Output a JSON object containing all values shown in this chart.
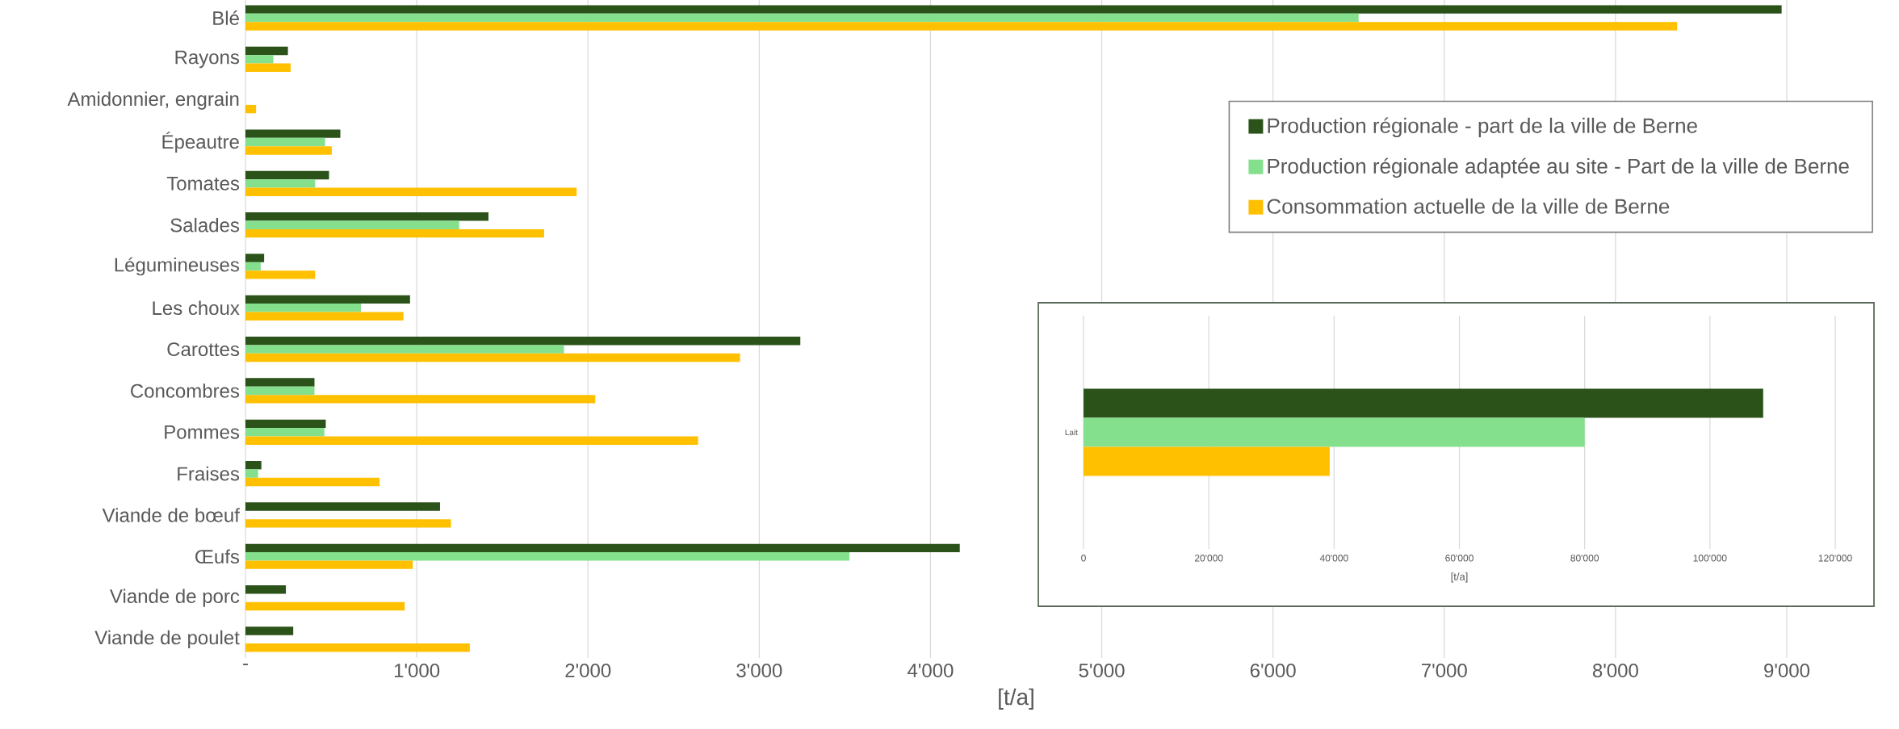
{
  "chart_data": [
    {
      "type": "bar",
      "orientation": "horizontal",
      "categories": [
        "Blé",
        "Rayons",
        "Amidonnier, engrain",
        "Épeautre",
        "Tomates",
        "Salades",
        "Légumineuses",
        "Les choux",
        "Carottes",
        "Concombres",
        "Pommes",
        "Fraises",
        "Viande de bœuf",
        "Œufs",
        "Viande de porc",
        "Viande de poulet"
      ],
      "series": [
        {
          "name": "Production régionale - part de la ville de Berne",
          "color": "#2a5219",
          "values": [
            8970,
            248,
            0,
            554,
            488,
            1419,
            109,
            961,
            3240,
            403,
            469,
            93,
            1136,
            4171,
            236,
            279
          ]
        },
        {
          "name": "Production régionale adaptée au site - Part de la ville de Berne",
          "color": "#85e08e",
          "values": [
            6500,
            163,
            0,
            465,
            407,
            1248,
            89,
            674,
            1860,
            403,
            461,
            74,
            null,
            3527,
            null,
            null
          ]
        },
        {
          "name": "Consommation actuelle de la ville de Berne",
          "color": "#ffc000",
          "values": [
            8360,
            264,
            62,
            504,
            1934,
            1744,
            407,
            922,
            2888,
            2043,
            2643,
            783,
            1200,
            977,
            930,
            1310
          ]
        }
      ],
      "xlim": [
        0,
        9000
      ],
      "xticks": [
        {
          "value": 0,
          "label": "-"
        },
        {
          "value": 1000,
          "label": "1'000"
        },
        {
          "value": 2000,
          "label": "2'000"
        },
        {
          "value": 3000,
          "label": "3'000"
        },
        {
          "value": 4000,
          "label": "4'000"
        },
        {
          "value": 5000,
          "label": "5'000"
        },
        {
          "value": 6000,
          "label": "6'000"
        },
        {
          "value": 7000,
          "label": "7'000"
        },
        {
          "value": 8000,
          "label": "8'000"
        },
        {
          "value": 9000,
          "label": "9'000"
        }
      ],
      "xlabel": "[t/a]",
      "grid": "x",
      "legend": "right"
    },
    {
      "type": "bar",
      "orientation": "horizontal",
      "categories": [
        "Lait"
      ],
      "series": [
        {
          "color": "#2a5219",
          "values": [
            108500
          ]
        },
        {
          "color": "#85e08e",
          "values": [
            80000
          ]
        },
        {
          "color": "#ffc000",
          "values": [
            39300
          ]
        }
      ],
      "xlim": [
        0,
        120000
      ],
      "xticks": [
        0,
        {
          "value": 20000,
          "label": "20'000"
        },
        {
          "value": 40000,
          "label": "40'000"
        },
        {
          "value": 60000,
          "label": "60'000"
        },
        {
          "value": 80000,
          "label": "80'000"
        },
        {
          "value": 100000,
          "label": "100'000"
        },
        {
          "value": 120000,
          "label": "120'000"
        }
      ],
      "xlabel": "[t/a]",
      "grid": "x"
    }
  ]
}
